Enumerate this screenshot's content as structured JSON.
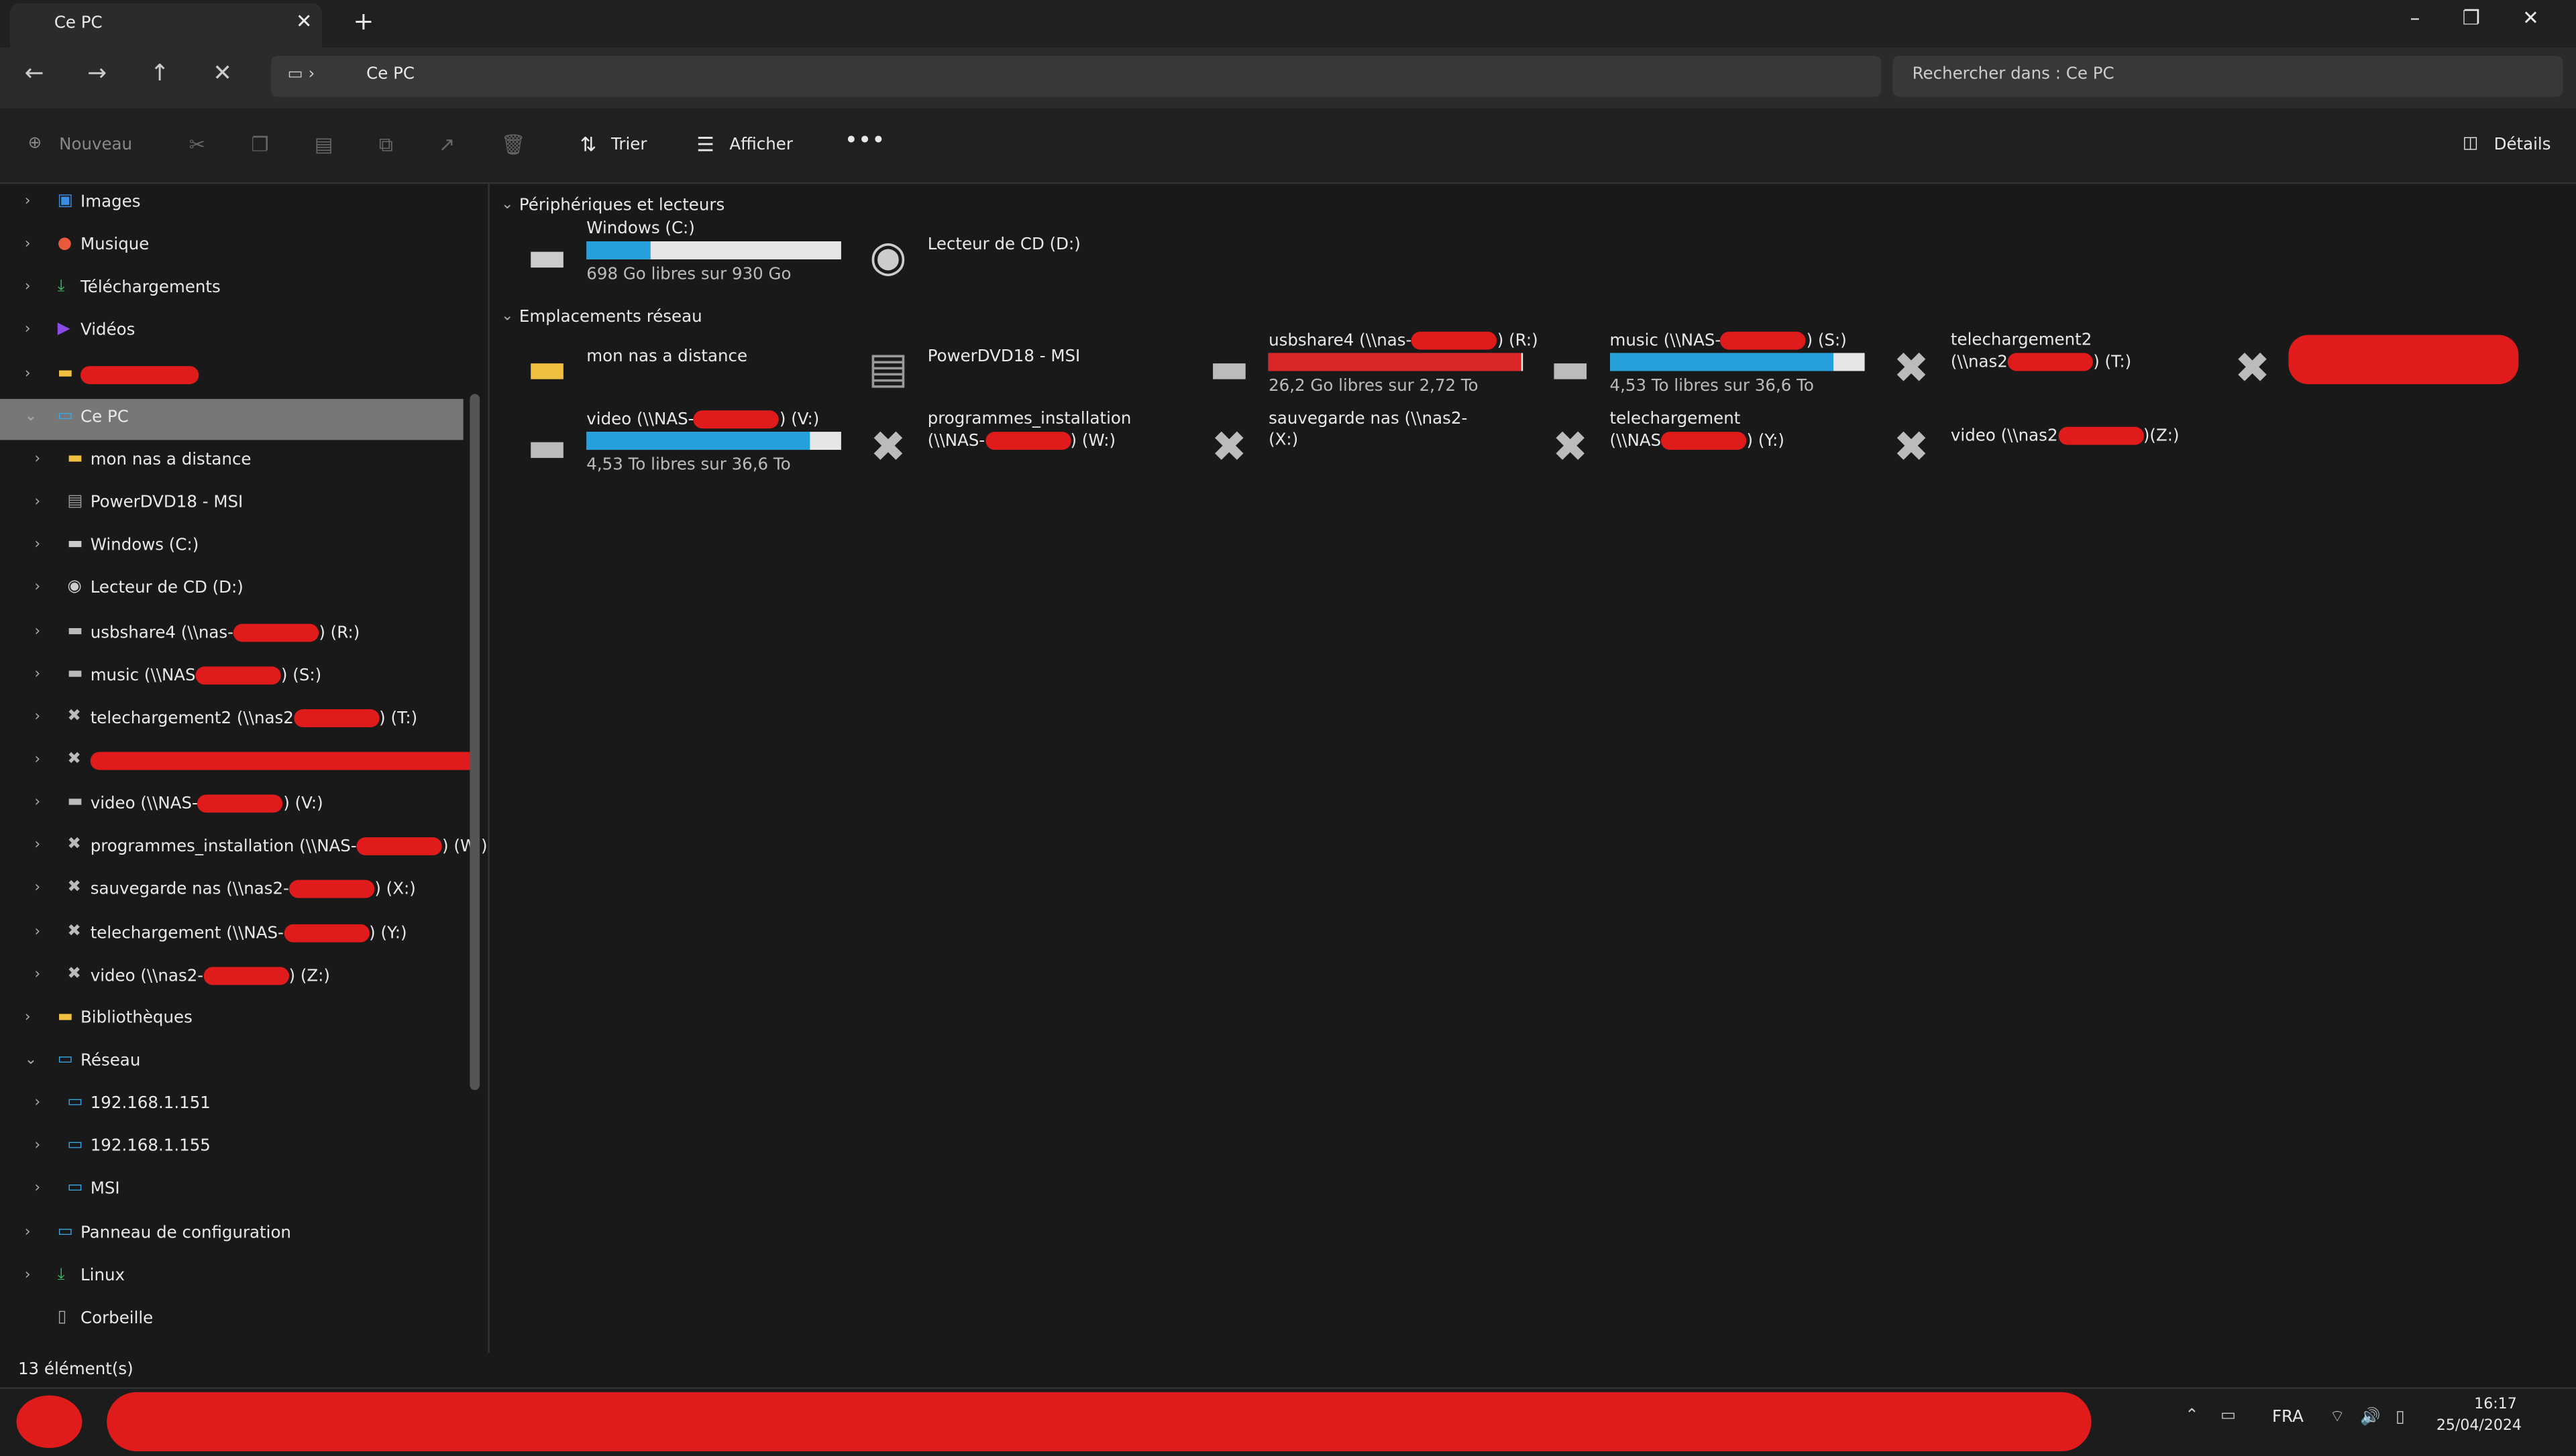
{
  "tab": {
    "title": "Ce PC"
  },
  "address": {
    "breadcrumb": "Ce PC"
  },
  "search": {
    "placeholder": "Rechercher dans : Ce PC"
  },
  "toolbar": {
    "new": "Nouveau",
    "sort": "Trier",
    "view": "Afficher",
    "details": "Détails"
  },
  "sidebar": {
    "items": [
      {
        "parts": [
          "Images"
        ],
        "level": 0,
        "icon": "img"
      },
      {
        "parts": [
          "Musique"
        ],
        "level": 0,
        "icon": "music"
      },
      {
        "parts": [
          "Téléchargements"
        ],
        "level": 0,
        "icon": "dl"
      },
      {
        "parts": [
          "Vidéos"
        ],
        "level": 0,
        "icon": "video"
      },
      {
        "parts": [],
        "level": 0,
        "icon": "folder",
        "redacted": true
      },
      {
        "parts": [
          "Ce PC"
        ],
        "level": 0,
        "icon": "pc",
        "selected": true,
        "expanded": true
      },
      {
        "parts": [
          "mon nas a distance"
        ],
        "level": 1,
        "icon": "folder"
      },
      {
        "parts": [
          "PowerDVD18 - MSI"
        ],
        "level": 1,
        "icon": "dvd"
      },
      {
        "parts": [
          "Windows (C:)"
        ],
        "level": 1,
        "icon": "drive"
      },
      {
        "parts": [
          "Lecteur de CD (D:)"
        ],
        "level": 1,
        "icon": "cd"
      },
      {
        "parts": [
          "usbshare4 (\\\\nas-",
          ") (R:)"
        ],
        "level": 1,
        "icon": "net"
      },
      {
        "parts": [
          "music (\\\\NAS",
          ") (S:)"
        ],
        "level": 1,
        "icon": "net"
      },
      {
        "parts": [
          "telechargement2 (\\\\nas2",
          ") (T:)"
        ],
        "level": 1,
        "icon": "off"
      },
      {
        "parts": [],
        "level": 1,
        "icon": "off",
        "redacted": true
      },
      {
        "parts": [
          "video (\\\\NAS-",
          ") (V:)"
        ],
        "level": 1,
        "icon": "net"
      },
      {
        "parts": [
          "programmes_installation (\\\\NAS-",
          ") (W:)"
        ],
        "level": 1,
        "icon": "off"
      },
      {
        "parts": [
          "sauvegarde nas (\\\\nas2-",
          ") (X:)"
        ],
        "level": 1,
        "icon": "off"
      },
      {
        "parts": [
          "telechargement (\\\\NAS-",
          ") (Y:)"
        ],
        "level": 1,
        "icon": "off"
      },
      {
        "parts": [
          "video (\\\\nas2-",
          ") (Z:)"
        ],
        "level": 1,
        "icon": "off"
      },
      {
        "parts": [
          "Bibliothèques"
        ],
        "level": 0,
        "icon": "folder"
      },
      {
        "parts": [
          "Réseau"
        ],
        "level": 0,
        "icon": "pc",
        "expanded": true
      },
      {
        "parts": [
          "192.168.1.151"
        ],
        "level": 1,
        "icon": "pc"
      },
      {
        "parts": [
          "192.168.1.155"
        ],
        "level": 1,
        "icon": "pc"
      },
      {
        "parts": [
          "MSI"
        ],
        "level": 1,
        "icon": "pc"
      },
      {
        "parts": [
          "Panneau de configuration"
        ],
        "level": 0,
        "icon": "pc"
      },
      {
        "parts": [
          "Linux"
        ],
        "level": 0,
        "icon": "dl"
      },
      {
        "parts": [
          "Corbeille"
        ],
        "level": 0,
        "icon": "bin",
        "noarrow": true
      }
    ]
  },
  "sections": [
    {
      "title": "Périphériques et lecteurs",
      "items": [
        {
          "name": [
            "Windows (C:)"
          ],
          "detail": "698 Go libres sur 930 Go",
          "usage": 25,
          "icon": "drive"
        },
        {
          "name": [
            "Lecteur de CD (D:)"
          ],
          "icon": "cd"
        }
      ]
    },
    {
      "title": "Emplacements réseau",
      "items": [
        {
          "name": [
            "mon nas a distance"
          ],
          "icon": "folder"
        },
        {
          "name": [
            "PowerDVD18 - MSI"
          ],
          "icon": "dvd"
        },
        {
          "name": [
            "usbshare4 (\\\\nas-",
            ") (R:)"
          ],
          "detail": "26,2 Go libres sur 2,72 To",
          "usage": 99,
          "icon": "net"
        },
        {
          "name": [
            "music (\\\\NAS-",
            ") (S:)"
          ],
          "detail": "4,53 To libres sur 36,6 To",
          "usage": 88,
          "icon": "net"
        },
        {
          "name": [
            "telechargement2"
          ],
          "name2": [
            "(\\\\nas2",
            ") (T:)"
          ],
          "icon": "off"
        },
        {
          "name": [],
          "icon": "off",
          "redacted": true
        },
        {
          "name": [
            "video (\\\\NAS-",
            ") (V:)"
          ],
          "detail": "4,53 To libres sur 36,6 To",
          "usage": 88,
          "icon": "net"
        },
        {
          "name": [
            "programmes_installation"
          ],
          "name2": [
            "(\\\\NAS-",
            ") (W:)"
          ],
          "icon": "off"
        },
        {
          "name": [
            "sauvegarde nas (\\\\nas2-"
          ],
          "name2": [
            "(X:)"
          ],
          "icon": "off"
        },
        {
          "name": [
            "telechargement"
          ],
          "name2": [
            "(\\\\NAS",
            ") (Y:)"
          ],
          "icon": "off"
        },
        {
          "name": [
            "video (\\\\nas2",
            ")(Z:)"
          ],
          "icon": "off"
        }
      ]
    }
  ],
  "status": {
    "count": "13 élément(s)"
  },
  "taskbar": {
    "lang": "FRA",
    "time": "16:17",
    "date": "25/04/2024"
  }
}
